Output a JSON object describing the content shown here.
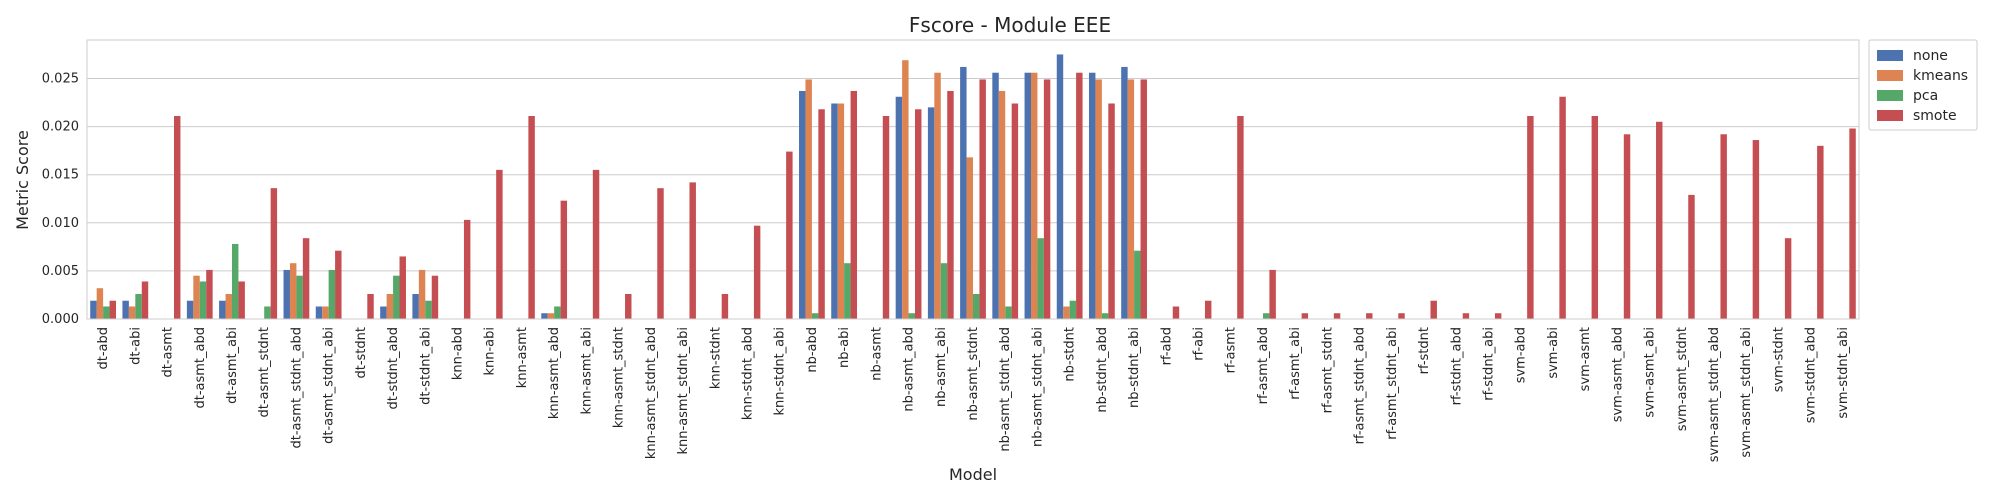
{
  "chart_data": {
    "type": "bar",
    "title": "Fscore - Module EEE",
    "xlabel": "Model",
    "ylabel": "Metric Score",
    "ylim": [
      0,
      0.029
    ],
    "yticks": [
      0.0,
      0.005,
      0.01,
      0.015,
      0.02,
      0.025
    ],
    "ytick_labels": [
      "0.000",
      "0.005",
      "0.010",
      "0.015",
      "0.020",
      "0.025"
    ],
    "grid": true,
    "legend_position": "outside-top-right",
    "categories": [
      "dt-abd",
      "dt-abi",
      "dt-asmt",
      "dt-asmt_abd",
      "dt-asmt_abi",
      "dt-asmt_stdnt",
      "dt-asmt_stdnt_abd",
      "dt-asmt_stdnt_abi",
      "dt-stdnt",
      "dt-stdnt_abd",
      "dt-stdnt_abi",
      "knn-abd",
      "knn-abi",
      "knn-asmt",
      "knn-asmt_abd",
      "knn-asmt_abi",
      "knn-asmt_stdnt",
      "knn-asmt_stdnt_abd",
      "knn-asmt_stdnt_abi",
      "knn-stdnt",
      "knn-stdnt_abd",
      "knn-stdnt_abi",
      "nb-abd",
      "nb-abi",
      "nb-asmt",
      "nb-asmt_abd",
      "nb-asmt_abi",
      "nb-asmt_stdnt",
      "nb-asmt_stdnt_abd",
      "nb-asmt_stdnt_abi",
      "nb-stdnt",
      "nb-stdnt_abd",
      "nb-stdnt_abi",
      "rf-abd",
      "rf-abi",
      "rf-asmt",
      "rf-asmt_abd",
      "rf-asmt_abi",
      "rf-asmt_stdnt",
      "rf-asmt_stdnt_abd",
      "rf-asmt_stdnt_abi",
      "rf-stdnt",
      "rf-stdnt_abd",
      "rf-stdnt_abi",
      "svm-abd",
      "svm-abi",
      "svm-asmt",
      "svm-asmt_abd",
      "svm-asmt_abi",
      "svm-asmt_stdnt",
      "svm-asmt_stdnt_abd",
      "svm-asmt_stdnt_abi",
      "svm-stdnt",
      "svm-stdnt_abd",
      "svm-stdnt_abi"
    ],
    "series": [
      {
        "name": "none",
        "color": "#4c72b0",
        "values": [
          0.0019,
          0.0019,
          0,
          0.0019,
          0.0019,
          0,
          0.0051,
          0.0013,
          0,
          0.0013,
          0.0026,
          0,
          0,
          0,
          0.0006,
          0,
          0,
          0,
          0,
          0,
          0,
          0,
          0.0237,
          0.0224,
          0,
          0.0231,
          0.022,
          0.0262,
          0.0256,
          0.0256,
          0.0275,
          0.0256,
          0.0262,
          0,
          0,
          0,
          0,
          0,
          0,
          0,
          0,
          0,
          0,
          0,
          0,
          0,
          0,
          0,
          0,
          0,
          0,
          0,
          0,
          0,
          0
        ]
      },
      {
        "name": "kmeans",
        "color": "#dd8452",
        "values": [
          0.0032,
          0.0013,
          0,
          0.0045,
          0.0026,
          0,
          0.0058,
          0.0013,
          0,
          0.0026,
          0.0051,
          0,
          0,
          0,
          0.0006,
          0,
          0,
          0,
          0,
          0,
          0,
          0,
          0.0249,
          0.0224,
          0,
          0.0269,
          0.0256,
          0.0168,
          0.0237,
          0.0256,
          0.0013,
          0.0249,
          0.0249,
          0,
          0,
          0,
          0,
          0,
          0,
          0,
          0,
          0,
          0,
          0,
          0,
          0,
          0,
          0,
          0,
          0,
          0,
          0,
          0,
          0,
          0
        ]
      },
      {
        "name": "pca",
        "color": "#55a868",
        "values": [
          0.0013,
          0.0026,
          0,
          0.0039,
          0.0078,
          0.0013,
          0.0045,
          0.0051,
          0,
          0.0045,
          0.0019,
          0,
          0,
          0,
          0.0013,
          0,
          0,
          0,
          0,
          0,
          0,
          0,
          0.0006,
          0.0058,
          0,
          0.0006,
          0.0058,
          0.0026,
          0.0013,
          0.0084,
          0.0019,
          0.0006,
          0.0071,
          0,
          0,
          0,
          0.0006,
          0,
          0,
          0,
          0,
          0,
          0,
          0,
          0,
          0,
          0,
          0,
          0,
          0,
          0,
          0,
          0,
          0,
          0
        ]
      },
      {
        "name": "smote",
        "color": "#c44e52",
        "values": [
          0.0019,
          0.0039,
          0.0211,
          0.0051,
          0.0039,
          0.0136,
          0.0084,
          0.0071,
          0.0026,
          0.0065,
          0.0045,
          0.0103,
          0.0155,
          0.0211,
          0.0123,
          0.0155,
          0.0026,
          0.0136,
          0.0142,
          0.0026,
          0.0097,
          0.0174,
          0.0218,
          0.0237,
          0.0211,
          0.0218,
          0.0237,
          0.0249,
          0.0224,
          0.0249,
          0.0256,
          0.0224,
          0.0249,
          0.0013,
          0.0019,
          0.0211,
          0.0051,
          0.0006,
          0.0006,
          0.0006,
          0.0006,
          0.0019,
          0.0006,
          0.0006,
          0.0211,
          0.0231,
          0.0211,
          0.0192,
          0.0205,
          0.0129,
          0.0192,
          0.0186,
          0.0084,
          0.018,
          0.0198
        ]
      }
    ]
  }
}
